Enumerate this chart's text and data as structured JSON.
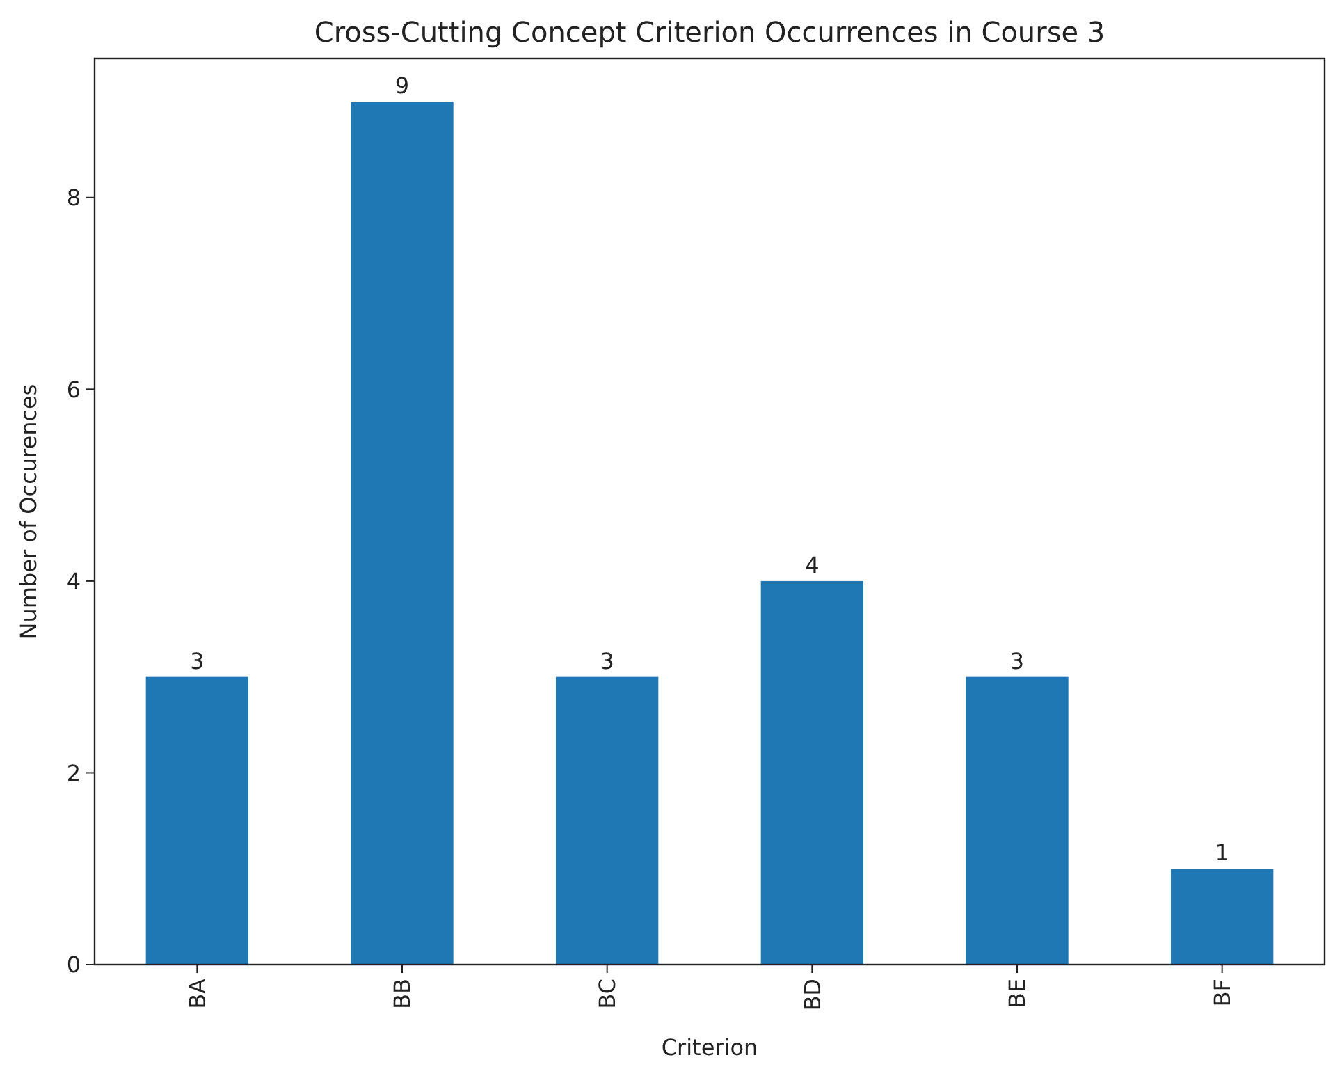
{
  "chart_data": {
    "type": "bar",
    "title": "Cross-Cutting Concept Criterion Occurrences in Course 3",
    "xlabel": "Criterion",
    "ylabel": "Number of Occurences",
    "categories": [
      "BA",
      "BB",
      "BC",
      "BD",
      "BE",
      "BF"
    ],
    "values": [
      3,
      9,
      3,
      4,
      3,
      1
    ],
    "color": "#1f77b4",
    "ylim": [
      0,
      9.45
    ],
    "yticks": [
      0,
      2,
      4,
      6,
      8
    ],
    "grid": false,
    "data_labels": true
  }
}
